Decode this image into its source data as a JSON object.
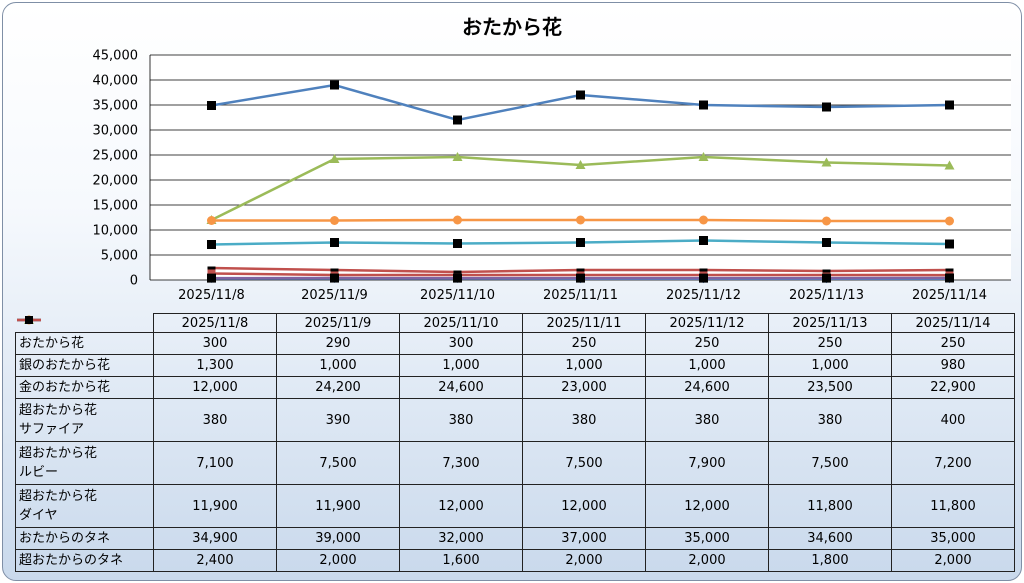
{
  "chart_data": {
    "type": "line",
    "title": "おたから花",
    "categories": [
      "2025/11/8",
      "2025/11/9",
      "2025/11/10",
      "2025/11/11",
      "2025/11/12",
      "2025/11/13",
      "2025/11/14"
    ],
    "ylim": [
      0,
      45000
    ],
    "yticks": [
      "0",
      "5,000",
      "10,000",
      "15,000",
      "20,000",
      "25,000",
      "30,000",
      "35,000",
      "40,000",
      "45,000"
    ],
    "grid": true,
    "legend": "data-table",
    "series": [
      {
        "name": "おたから花",
        "color": "#4f81bd",
        "marker": "diamond",
        "values": [
          300,
          290,
          300,
          250,
          250,
          250,
          250
        ],
        "labels": [
          "300",
          "290",
          "300",
          "250",
          "250",
          "250",
          "250"
        ]
      },
      {
        "name": "銀のおたから花",
        "color": "#c0504d",
        "marker": "square",
        "values": [
          1300,
          1000,
          1000,
          1000,
          1000,
          1000,
          980
        ],
        "labels": [
          "1,300",
          "1,000",
          "1,000",
          "1,000",
          "1,000",
          "1,000",
          "980"
        ]
      },
      {
        "name": "金のおたから花",
        "color": "#9bbb59",
        "marker": "triangle",
        "values": [
          12000,
          24200,
          24600,
          23000,
          24600,
          23500,
          22900
        ],
        "labels": [
          "12,000",
          "24,200",
          "24,600",
          "23,000",
          "24,600",
          "23,500",
          "22,900"
        ]
      },
      {
        "name": "超おたから花 サファイア",
        "name_lines": [
          "超おたから花",
          "サファイア"
        ],
        "color": "#8064a2",
        "marker": "square-black",
        "values": [
          380,
          390,
          380,
          380,
          380,
          380,
          400
        ],
        "labels": [
          "380",
          "390",
          "380",
          "380",
          "380",
          "380",
          "400"
        ]
      },
      {
        "name": "超おたから花 ルビー",
        "name_lines": [
          "超おたから花",
          "ルビー"
        ],
        "color": "#4bacc6",
        "marker": "square-black",
        "values": [
          7100,
          7500,
          7300,
          7500,
          7900,
          7500,
          7200
        ],
        "labels": [
          "7,100",
          "7,500",
          "7,300",
          "7,500",
          "7,900",
          "7,500",
          "7,200"
        ]
      },
      {
        "name": "超おたから花 ダイヤ",
        "name_lines": [
          "超おたから花",
          "ダイヤ"
        ],
        "color": "#f79646",
        "marker": "circle",
        "values": [
          11900,
          11900,
          12000,
          12000,
          12000,
          11800,
          11800
        ],
        "labels": [
          "11,900",
          "11,900",
          "12,000",
          "12,000",
          "12,000",
          "11,800",
          "11,800"
        ]
      },
      {
        "name": "おたからのタネ",
        "color": "#4f81bd",
        "marker": "square-black",
        "values": [
          34900,
          39000,
          32000,
          37000,
          35000,
          34600,
          35000
        ],
        "labels": [
          "34,900",
          "39,000",
          "32,000",
          "37,000",
          "35,000",
          "34,600",
          "35,000"
        ]
      },
      {
        "name": "超おたからのタネ",
        "color": "#c0504d",
        "marker": "dash",
        "values": [
          2400,
          2000,
          1600,
          2000,
          2000,
          1800,
          2000
        ],
        "labels": [
          "2,400",
          "2,000",
          "1,600",
          "2,000",
          "2,000",
          "1,800",
          "2,000"
        ]
      }
    ]
  }
}
